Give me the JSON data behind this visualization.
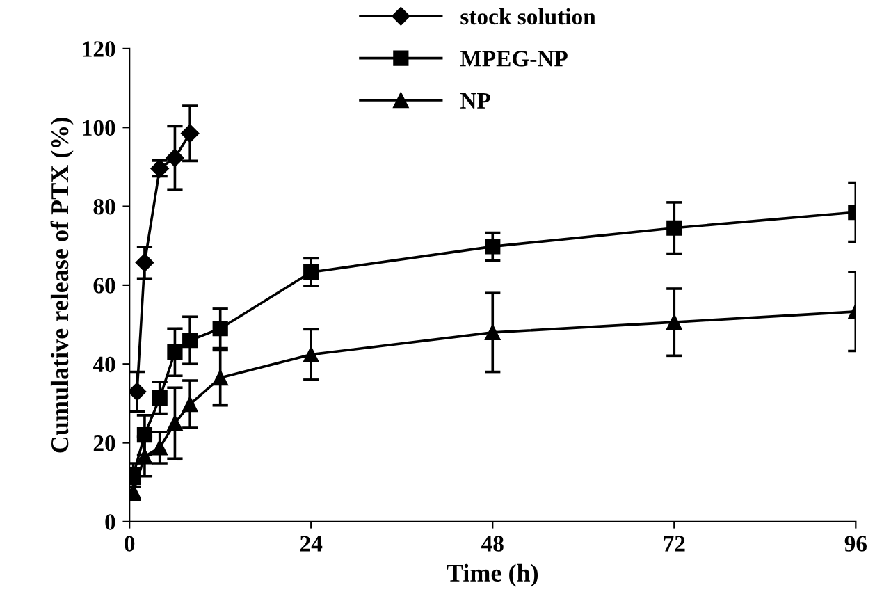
{
  "chart_data": {
    "type": "line",
    "xlabel": "Time (h)",
    "ylabel": "Cumulative release of PTX (%)",
    "xlim": [
      0,
      96
    ],
    "xticks": [
      0,
      24,
      48,
      72,
      96
    ],
    "ylim": [
      0,
      120
    ],
    "yticks": [
      0,
      20,
      40,
      60,
      80,
      100,
      120
    ],
    "grid": false,
    "legend": "top",
    "line_style": "solid",
    "series": [
      {
        "name": "stock solution",
        "color": "#000000",
        "marker": "diamond",
        "x": [
          1,
          2,
          4,
          6,
          8
        ],
        "values": [
          33,
          65.7,
          89.6,
          92.3,
          98.5
        ],
        "errors": [
          5,
          4,
          2,
          8,
          7
        ]
      },
      {
        "name": "MPEG-NP",
        "color": "#000000",
        "marker": "square",
        "x": [
          0.5,
          2,
          4,
          6,
          8,
          12,
          24,
          48,
          72,
          96
        ],
        "values": [
          11.8,
          22,
          31.4,
          43,
          46,
          49,
          63.3,
          69.8,
          74.5,
          78.5
        ],
        "errors": [
          3,
          5,
          4,
          6,
          6,
          5,
          3.5,
          3.5,
          6.5,
          7.5
        ]
      },
      {
        "name": "NP",
        "color": "#000000",
        "marker": "triangle",
        "x": [
          0.5,
          2,
          4,
          6,
          8,
          12,
          24,
          48,
          72,
          96
        ],
        "values": [
          7.6,
          16.5,
          18.8,
          25,
          29.8,
          36.5,
          42.4,
          48,
          50.6,
          53.3
        ],
        "errors": [
          2,
          5,
          4,
          9,
          6,
          7,
          6.4,
          10,
          8.5,
          10
        ]
      }
    ]
  }
}
